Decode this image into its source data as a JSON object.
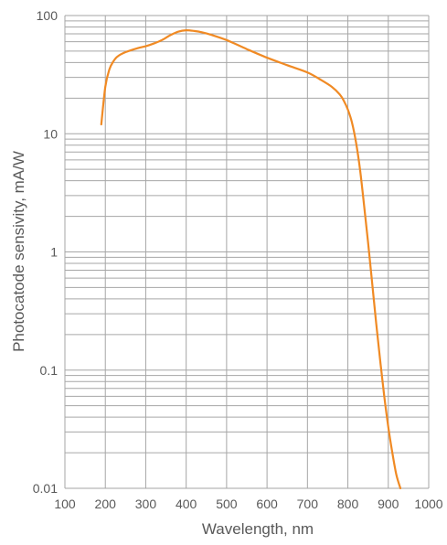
{
  "chart_data": {
    "type": "line",
    "title": "",
    "xlabel": "Wavelength, nm",
    "ylabel": "Photocatode sensivity, mA/W",
    "x_scale": "linear",
    "y_scale": "log",
    "xlim": [
      100,
      1000
    ],
    "ylim": [
      0.01,
      100
    ],
    "x_ticks": [
      100,
      200,
      300,
      400,
      500,
      600,
      700,
      800,
      900,
      1000
    ],
    "x_tick_labels": [
      "100",
      "200",
      "300",
      "400",
      "500",
      "600",
      "700",
      "800",
      "900",
      "1000"
    ],
    "y_ticks": [
      0.01,
      0.1,
      1,
      10,
      100
    ],
    "y_tick_labels": [
      "0.01",
      "0.1",
      "1",
      "10",
      "100"
    ],
    "grid": true,
    "legend": "none",
    "colors": {
      "line": "#f08a24",
      "grid": "#a6a6a6",
      "text": "#595959"
    },
    "series": [
      {
        "x": [
          190,
          200,
          210,
          220,
          230,
          250,
          280,
          300,
          320,
          340,
          360,
          380,
          400,
          420,
          440,
          460,
          500,
          550,
          600,
          650,
          700,
          730,
          760,
          780,
          790,
          800,
          810,
          820,
          830,
          840,
          850,
          860,
          870,
          880,
          890,
          900,
          910,
          920,
          930
        ],
        "y": [
          12,
          25,
          35,
          41,
          45,
          49,
          53,
          55,
          58,
          62,
          68,
          73,
          75,
          74,
          72,
          69,
          62,
          52,
          44,
          38,
          33,
          29,
          25,
          21.5,
          19,
          16,
          12.5,
          8.5,
          5,
          2.5,
          1.2,
          0.55,
          0.25,
          0.12,
          0.06,
          0.033,
          0.02,
          0.013,
          0.01
        ]
      }
    ]
  }
}
